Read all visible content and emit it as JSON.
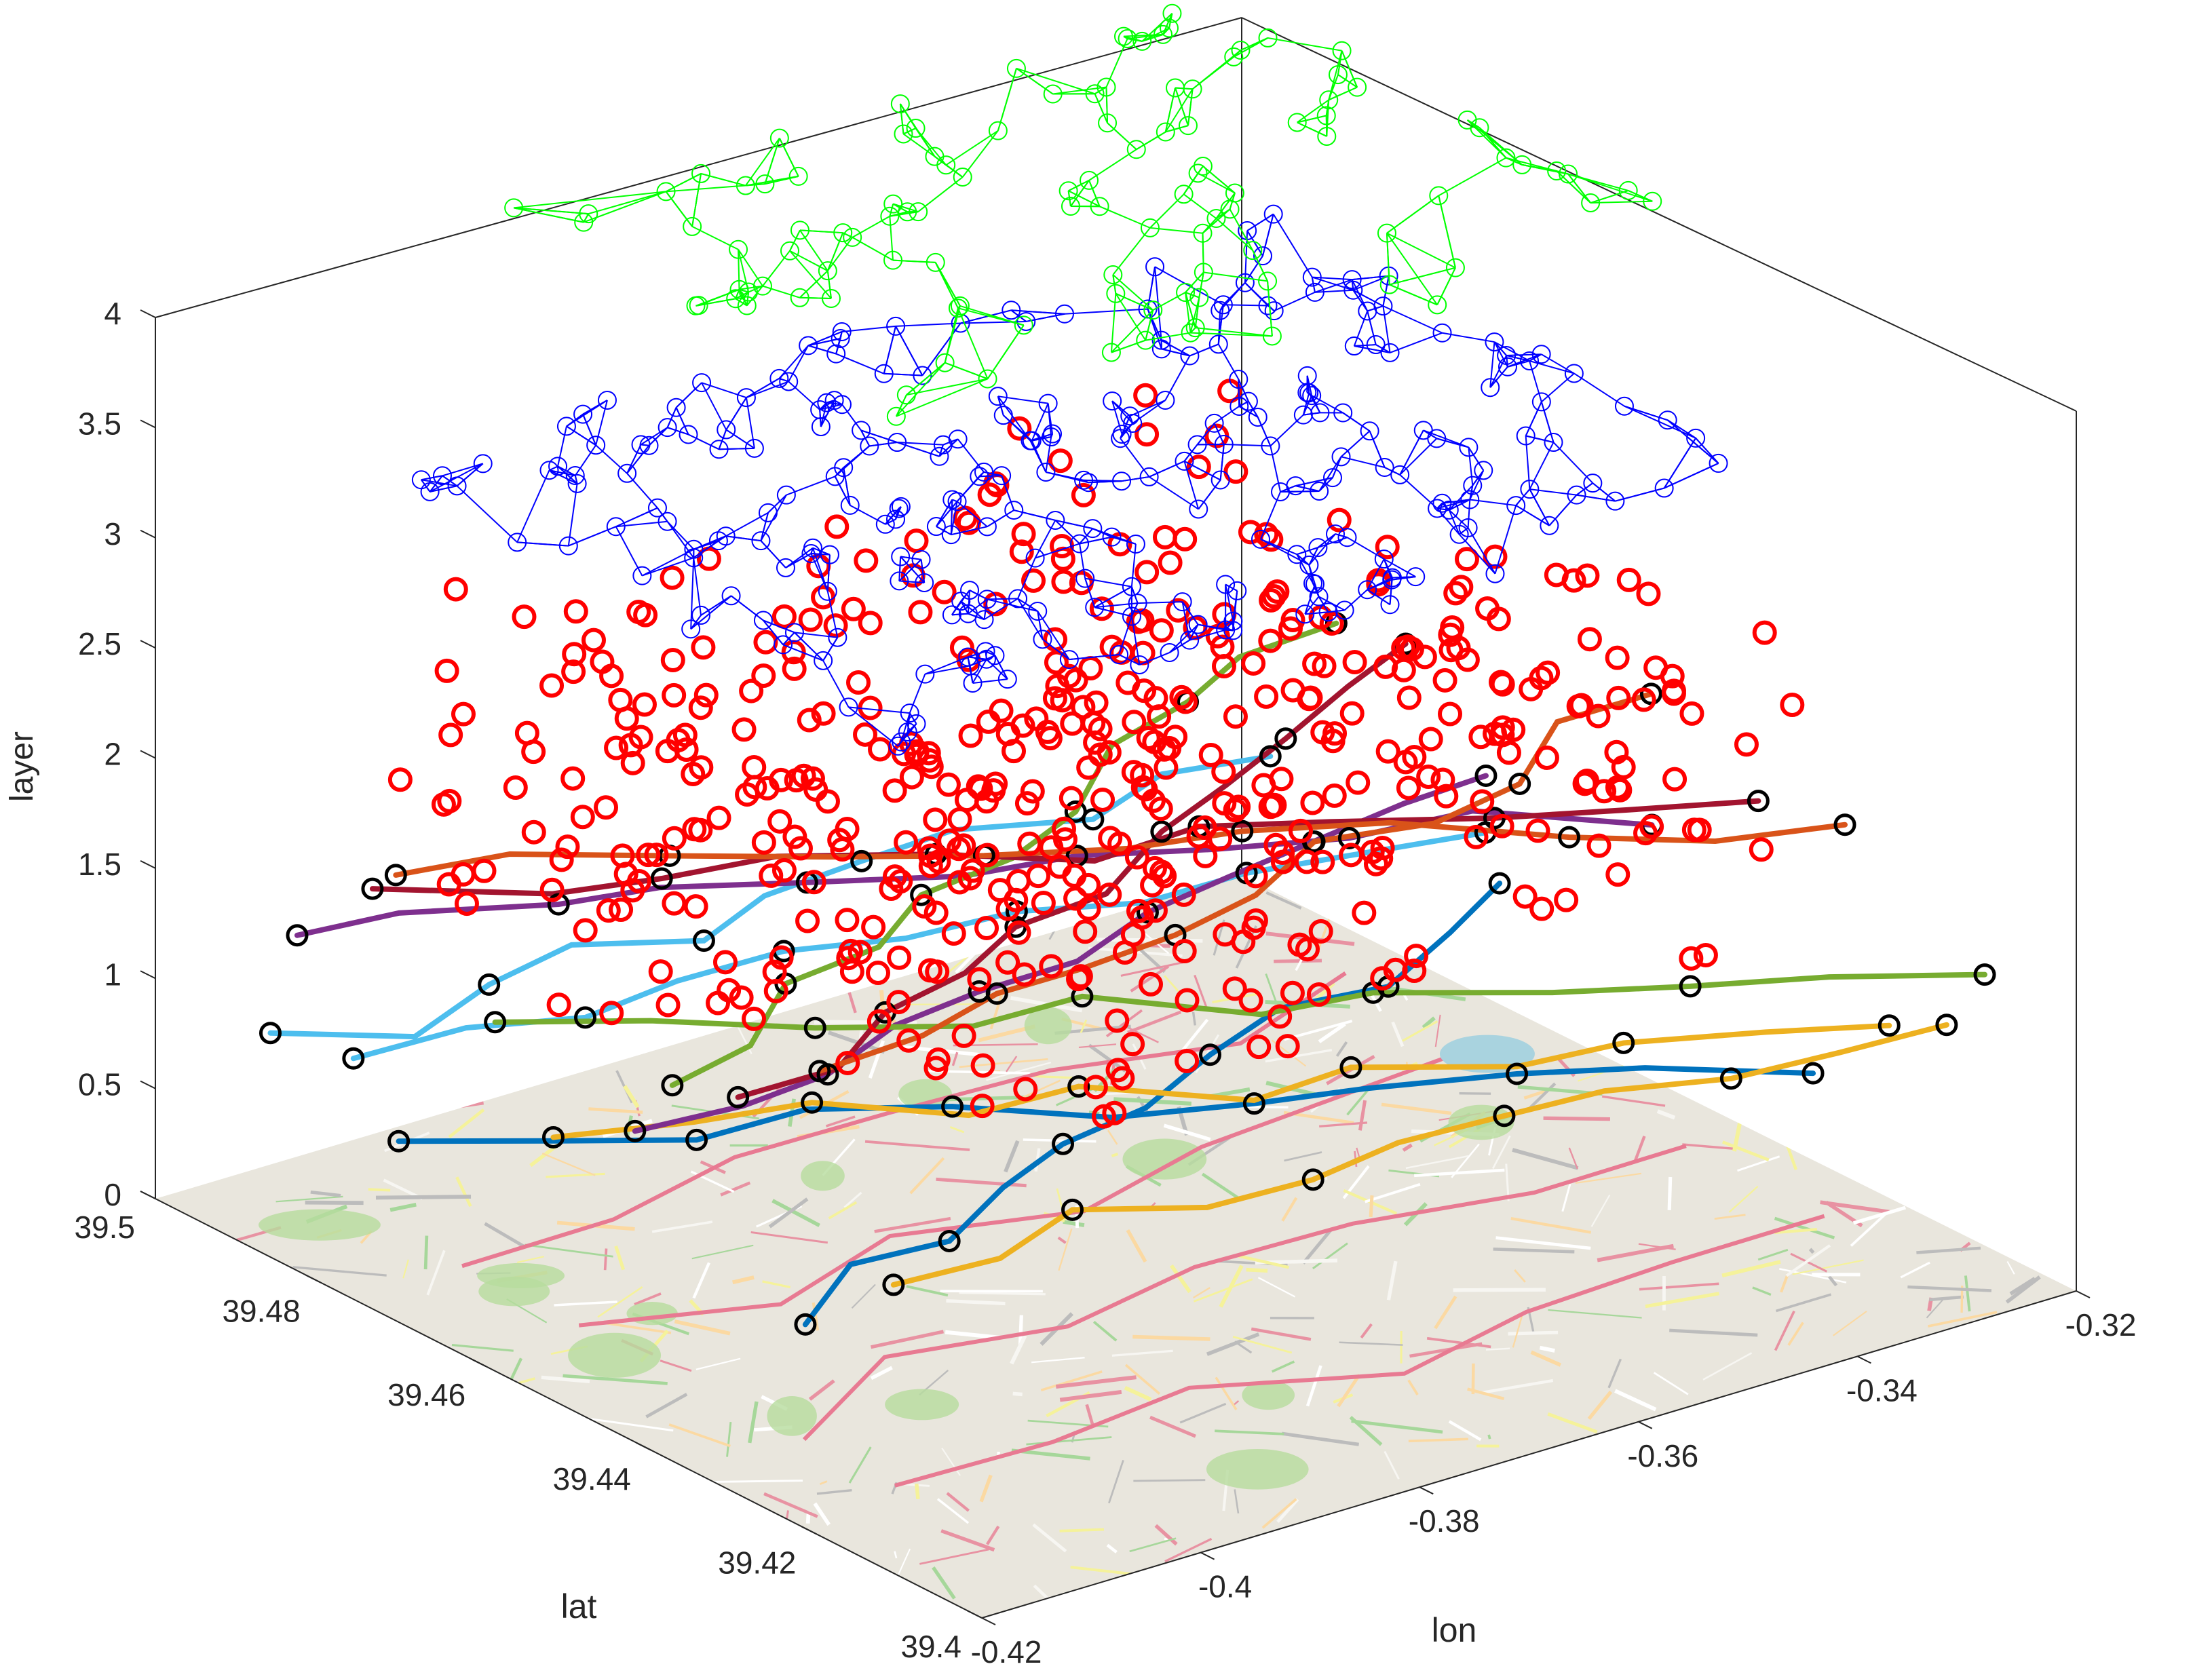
{
  "chart_data": {
    "type": "scatter",
    "projection": "3d",
    "title": "",
    "xlabel": "lon",
    "ylabel": "lat",
    "zlabel": "layer",
    "xlim": [
      -0.42,
      -0.32
    ],
    "ylim": [
      39.4,
      39.5
    ],
    "zlim": [
      0,
      4
    ],
    "x_ticks": [
      "-0.42",
      "-0.4",
      "-0.38",
      "-0.36",
      "-0.34",
      "-0.32"
    ],
    "y_ticks": [
      "39.4",
      "39.42",
      "39.44",
      "39.46",
      "39.48",
      "39.5"
    ],
    "z_ticks": [
      "0",
      "0.5",
      "1",
      "1.5",
      "2",
      "2.5",
      "3",
      "3.5",
      "4"
    ],
    "grid": false,
    "legend": "none",
    "base_layer": "street map of Valencia at layer 0",
    "series": [
      {
        "layer": 0,
        "kind": "map",
        "color": "#e8e4d8"
      },
      {
        "layer": "0.5-2",
        "kind": "colored transit lines",
        "marker": "black circles"
      },
      {
        "layer": "1-2.5",
        "kind": "stops",
        "marker": "red circles",
        "color": "#ff0000"
      },
      {
        "layer": "~3",
        "kind": "network",
        "marker": "blue circles",
        "color": "#0000ff"
      },
      {
        "layer": "~4",
        "kind": "network",
        "marker": "green circles",
        "color": "#00ff00"
      }
    ],
    "line_colors": [
      "#0072bd",
      "#4dbeee",
      "#edb120",
      "#7e2f8e",
      "#77ac30",
      "#a2142f",
      "#d95319"
    ]
  }
}
